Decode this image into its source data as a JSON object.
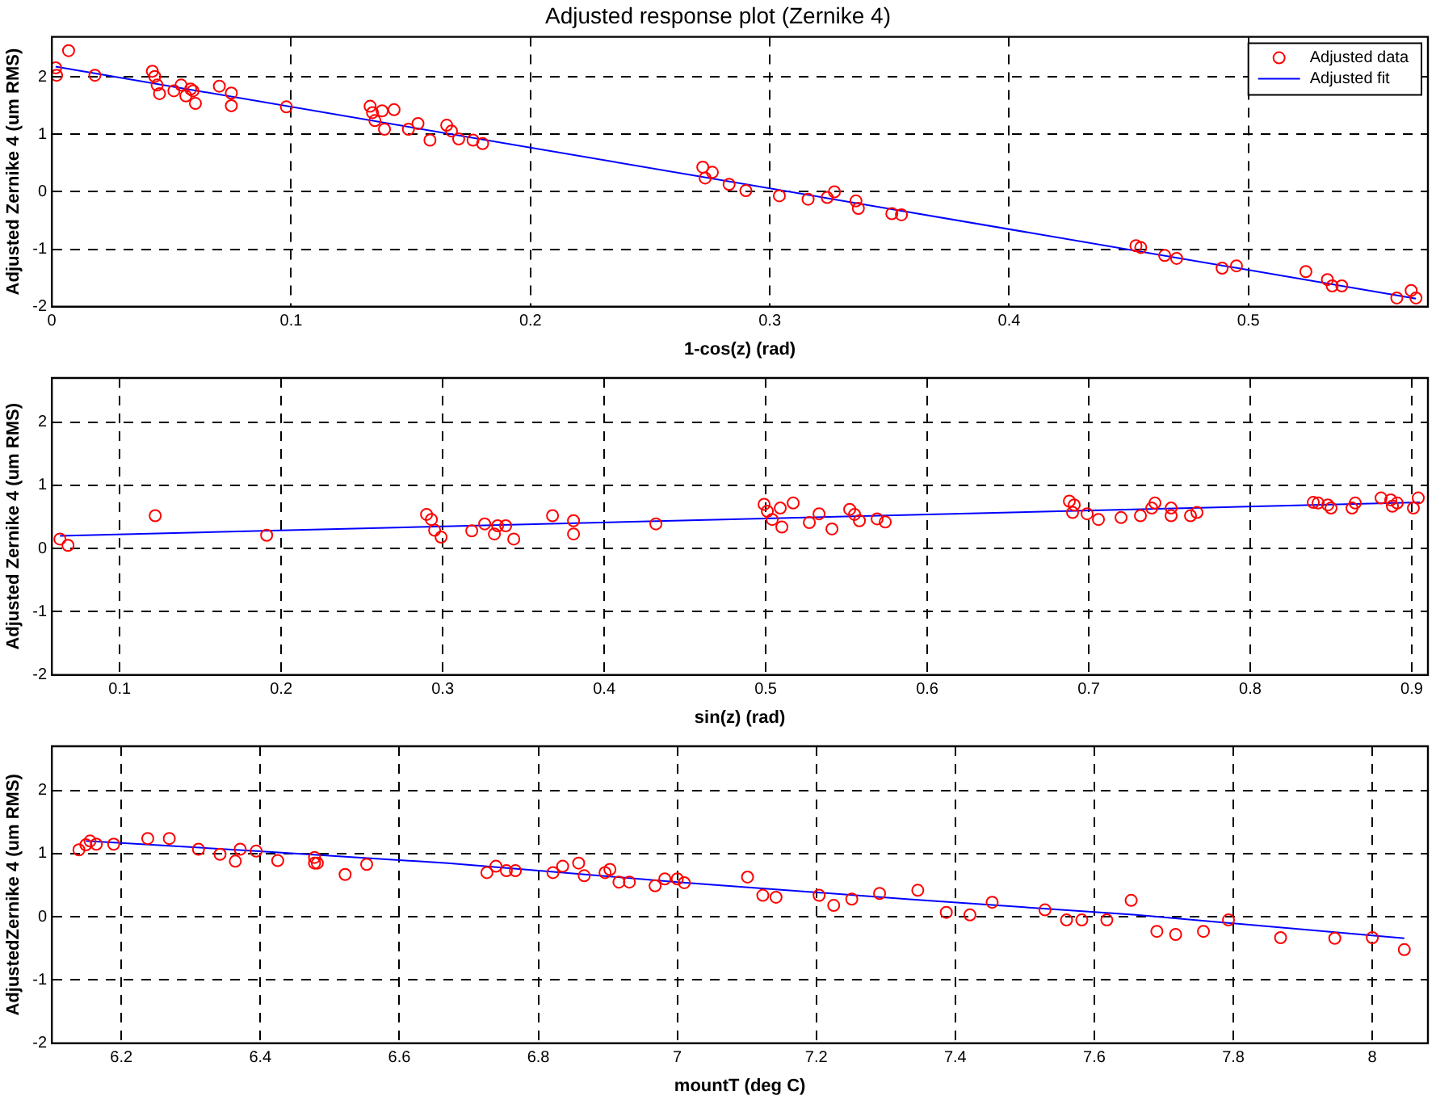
{
  "chart_data": [
    {
      "type": "scatter",
      "title": "Adjusted response plot (Zernike 4)",
      "xlabel": "1-cos(z) (rad)",
      "ylabel": "Adjusted Zernike 4 (um RMS)",
      "xlim": [
        0,
        0.575
      ],
      "xticks": [
        0,
        0.1,
        0.2,
        0.3,
        0.4,
        0.5
      ],
      "ylim": [
        -2,
        2.7
      ],
      "yticks": [
        -2,
        -1,
        0,
        1,
        2
      ],
      "grid": true,
      "legend": "top right",
      "series": [
        {
          "name": "Adjusted data",
          "type": "scatter",
          "marker": "circle",
          "color": "#ff0000",
          "x": [
            0.0016,
            0.002,
            0.007,
            0.018,
            0.042,
            0.043,
            0.044,
            0.045,
            0.051,
            0.054,
            0.056,
            0.058,
            0.059,
            0.06,
            0.07,
            0.075,
            0.075,
            0.098,
            0.133,
            0.134,
            0.135,
            0.138,
            0.139,
            0.143,
            0.149,
            0.153,
            0.158,
            0.165,
            0.167,
            0.17,
            0.176,
            0.18,
            0.272,
            0.273,
            0.276,
            0.283,
            0.29,
            0.304,
            0.316,
            0.324,
            0.327,
            0.336,
            0.337,
            0.351,
            0.355,
            0.453,
            0.455,
            0.465,
            0.47,
            0.489,
            0.495,
            0.524,
            0.533,
            0.535,
            0.539,
            0.562,
            0.568,
            0.57
          ],
          "values": [
            2.16,
            2.03,
            2.46,
            2.03,
            2.1,
            2.01,
            1.86,
            1.71,
            1.76,
            1.86,
            1.67,
            1.79,
            1.76,
            1.54,
            1.84,
            1.72,
            1.5,
            1.48,
            1.49,
            1.38,
            1.24,
            1.41,
            1.09,
            1.43,
            1.09,
            1.19,
            0.9,
            1.16,
            1.06,
            0.92,
            0.9,
            0.84,
            0.43,
            0.24,
            0.34,
            0.13,
            0.02,
            -0.07,
            -0.13,
            -0.1,
            0,
            -0.16,
            -0.29,
            -0.38,
            -0.4,
            -0.94,
            -0.97,
            -1.11,
            -1.16,
            -1.33,
            -1.29,
            -1.39,
            -1.53,
            -1.64,
            -1.64,
            -1.85,
            -1.72,
            -1.85
          ]
        },
        {
          "name": "Adjusted fit",
          "type": "line",
          "marker": "none",
          "line_style": "solid",
          "color": "#0000ff",
          "x": [
            0.0016,
            0.57
          ],
          "values": [
            2.18,
            -1.86
          ]
        }
      ]
    },
    {
      "type": "scatter",
      "xlabel": "sin(z) (rad)",
      "ylabel": "Adjusted Zernike 4 (um RMS)",
      "xlim": [
        0.058,
        0.91
      ],
      "xticks": [
        0.1,
        0.2,
        0.3,
        0.4,
        0.5,
        0.6,
        0.7,
        0.8,
        0.9
      ],
      "ylim": [
        -2,
        2.7
      ],
      "yticks": [
        -2,
        -1,
        0,
        1,
        2
      ],
      "grid": true,
      "series": [
        {
          "type": "scatter",
          "marker": "circle",
          "color": "#ff0000",
          "x": [
            0.063,
            0.068,
            0.122,
            0.191,
            0.29,
            0.293,
            0.295,
            0.299,
            0.318,
            0.326,
            0.332,
            0.334,
            0.339,
            0.344,
            0.368,
            0.381,
            0.381,
            0.432,
            0.499,
            0.501,
            0.504,
            0.509,
            0.51,
            0.517,
            0.527,
            0.533,
            0.541,
            0.552,
            0.555,
            0.558,
            0.569,
            0.574,
            0.688,
            0.69,
            0.691,
            0.699,
            0.706,
            0.72,
            0.732,
            0.739,
            0.741,
            0.751,
            0.751,
            0.763,
            0.767,
            0.839,
            0.842,
            0.848,
            0.85,
            0.863,
            0.865,
            0.881,
            0.887,
            0.888,
            0.891,
            0.901,
            0.904
          ],
          "values": [
            0.15,
            0.05,
            0.52,
            0.21,
            0.54,
            0.46,
            0.29,
            0.18,
            0.28,
            0.39,
            0.23,
            0.36,
            0.36,
            0.15,
            0.52,
            0.44,
            0.23,
            0.39,
            0.7,
            0.59,
            0.46,
            0.64,
            0.34,
            0.72,
            0.41,
            0.55,
            0.31,
            0.62,
            0.54,
            0.44,
            0.47,
            0.42,
            0.75,
            0.57,
            0.69,
            0.55,
            0.46,
            0.49,
            0.52,
            0.64,
            0.72,
            0.64,
            0.52,
            0.52,
            0.57,
            0.73,
            0.72,
            0.69,
            0.64,
            0.64,
            0.72,
            0.8,
            0.77,
            0.67,
            0.72,
            0.64,
            0.8
          ]
        },
        {
          "type": "line",
          "marker": "none",
          "line_style": "solid",
          "color": "#0000ff",
          "x": [
            0.063,
            0.905
          ],
          "values": [
            0.2,
            0.73
          ]
        }
      ]
    },
    {
      "type": "scatter",
      "xlabel": "mountT (deg C)",
      "ylabel": "AdjustedZernike 4 (um RMS)",
      "xlim": [
        6.1,
        8.08
      ],
      "xticks": [
        6.2,
        6.4,
        6.6,
        6.8,
        7,
        7.2,
        7.4,
        7.6,
        7.8,
        8
      ],
      "ylim": [
        -2,
        2.7
      ],
      "yticks": [
        -2,
        -1,
        0,
        1,
        2
      ],
      "grid": true,
      "series": [
        {
          "type": "scatter",
          "marker": "circle",
          "color": "#ff0000",
          "x": [
            6.139,
            6.149,
            6.155,
            6.164,
            6.189,
            6.238,
            6.269,
            6.311,
            6.342,
            6.364,
            6.371,
            6.394,
            6.425,
            6.478,
            6.478,
            6.482,
            6.522,
            6.553,
            6.726,
            6.739,
            6.754,
            6.767,
            6.821,
            6.835,
            6.858,
            6.866,
            6.896,
            6.903,
            6.916,
            6.931,
            6.968,
            6.982,
            7.0,
            7.01,
            7.101,
            7.123,
            7.142,
            7.204,
            7.225,
            7.251,
            7.291,
            7.346,
            7.387,
            7.421,
            7.453,
            7.529,
            7.56,
            7.582,
            7.618,
            7.653,
            7.69,
            7.717,
            7.757,
            7.793,
            7.868,
            7.946,
            8.0,
            8.046
          ],
          "values": [
            1.06,
            1.14,
            1.2,
            1.15,
            1.15,
            1.24,
            1.24,
            1.07,
            0.99,
            0.88,
            1.07,
            1.04,
            0.89,
            0.94,
            0.85,
            0.85,
            0.67,
            0.83,
            0.7,
            0.8,
            0.73,
            0.73,
            0.7,
            0.8,
            0.85,
            0.65,
            0.7,
            0.75,
            0.55,
            0.55,
            0.49,
            0.6,
            0.6,
            0.54,
            0.63,
            0.34,
            0.31,
            0.34,
            0.18,
            0.28,
            0.37,
            0.42,
            0.07,
            0.03,
            0.23,
            0.11,
            -0.05,
            -0.05,
            -0.05,
            0.26,
            -0.23,
            -0.28,
            -0.23,
            -0.05,
            -0.33,
            -0.34,
            -0.33,
            -0.52
          ]
        },
        {
          "type": "line",
          "marker": "none",
          "line_style": "solid",
          "color": "#0000ff",
          "x": [
            6.149,
            6.2,
            6.394,
            6.67,
            7.0,
            7.33,
            7.66,
            8.046
          ],
          "values": [
            1.2,
            1.17,
            1.04,
            0.85,
            0.55,
            0.28,
            0.03,
            -0.34
          ]
        }
      ]
    }
  ]
}
